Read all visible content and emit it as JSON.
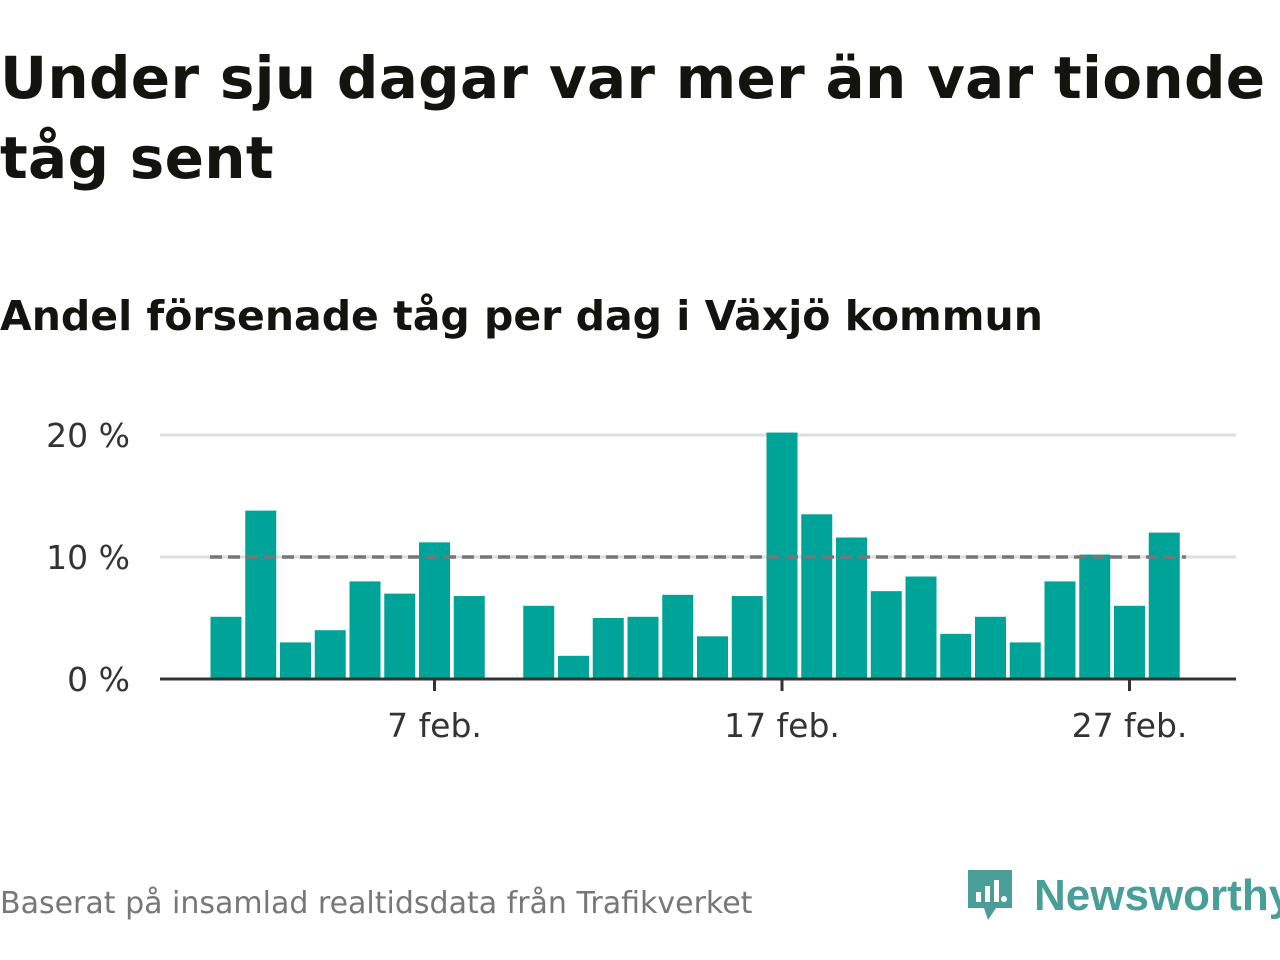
{
  "header": {
    "title": "Under sju dagar var mer än var tionde tåg sent",
    "subtitle": "Andel försenade tåg per dag i Växjö kommun"
  },
  "footer": {
    "source": "Baserat på insamlad realtidsdata från Trafikverket",
    "brand": "Newsworthy",
    "brand_icon": "newsworthy-logo-icon"
  },
  "colors": {
    "bar": "#00a398",
    "reference_line": "#777777",
    "gridline": "#dddddd",
    "axis": "#333333",
    "brand": "#4a9e98"
  },
  "chart_data": {
    "type": "bar",
    "title": "Andel försenade tåg per dag i Växjö kommun",
    "xlabel": "",
    "ylabel": "",
    "ylim": [
      0,
      20
    ],
    "y_ticks": [
      0,
      10,
      20
    ],
    "y_tick_labels": [
      "0 %",
      "10 %",
      "20 %"
    ],
    "x_tick_labels": [
      {
        "date": "2020-02-07",
        "label": "7 feb."
      },
      {
        "date": "2020-02-17",
        "label": "17 feb."
      },
      {
        "date": "2020-02-27",
        "label": "27 feb."
      }
    ],
    "grid": true,
    "reference_line": {
      "value": 10,
      "style": "dashed"
    },
    "series": [
      {
        "points": [
          {
            "date": "2020-02-01",
            "value": 5.1
          },
          {
            "date": "2020-02-02",
            "value": 13.8
          },
          {
            "date": "2020-02-03",
            "value": 3.0
          },
          {
            "date": "2020-02-04",
            "value": 4.0
          },
          {
            "date": "2020-02-05",
            "value": 8.0
          },
          {
            "date": "2020-02-06",
            "value": 7.0
          },
          {
            "date": "2020-02-07",
            "value": 11.2
          },
          {
            "date": "2020-02-08",
            "value": 6.8
          },
          {
            "date": "2020-02-10",
            "value": 6.0
          },
          {
            "date": "2020-02-11",
            "value": 1.9
          },
          {
            "date": "2020-02-12",
            "value": 5.0
          },
          {
            "date": "2020-02-13",
            "value": 5.1
          },
          {
            "date": "2020-02-14",
            "value": 6.9
          },
          {
            "date": "2020-02-15",
            "value": 3.5
          },
          {
            "date": "2020-02-16",
            "value": 6.8
          },
          {
            "date": "2020-02-17",
            "value": 20.2
          },
          {
            "date": "2020-02-18",
            "value": 13.5
          },
          {
            "date": "2020-02-19",
            "value": 11.6
          },
          {
            "date": "2020-02-20",
            "value": 7.2
          },
          {
            "date": "2020-02-21",
            "value": 8.4
          },
          {
            "date": "2020-02-22",
            "value": 3.7
          },
          {
            "date": "2020-02-23",
            "value": 5.1
          },
          {
            "date": "2020-02-24",
            "value": 3.0
          },
          {
            "date": "2020-02-25",
            "value": 8.0
          },
          {
            "date": "2020-02-26",
            "value": 10.2
          },
          {
            "date": "2020-02-27",
            "value": 6.0
          },
          {
            "date": "2020-02-28",
            "value": 12.0
          }
        ]
      }
    ]
  }
}
